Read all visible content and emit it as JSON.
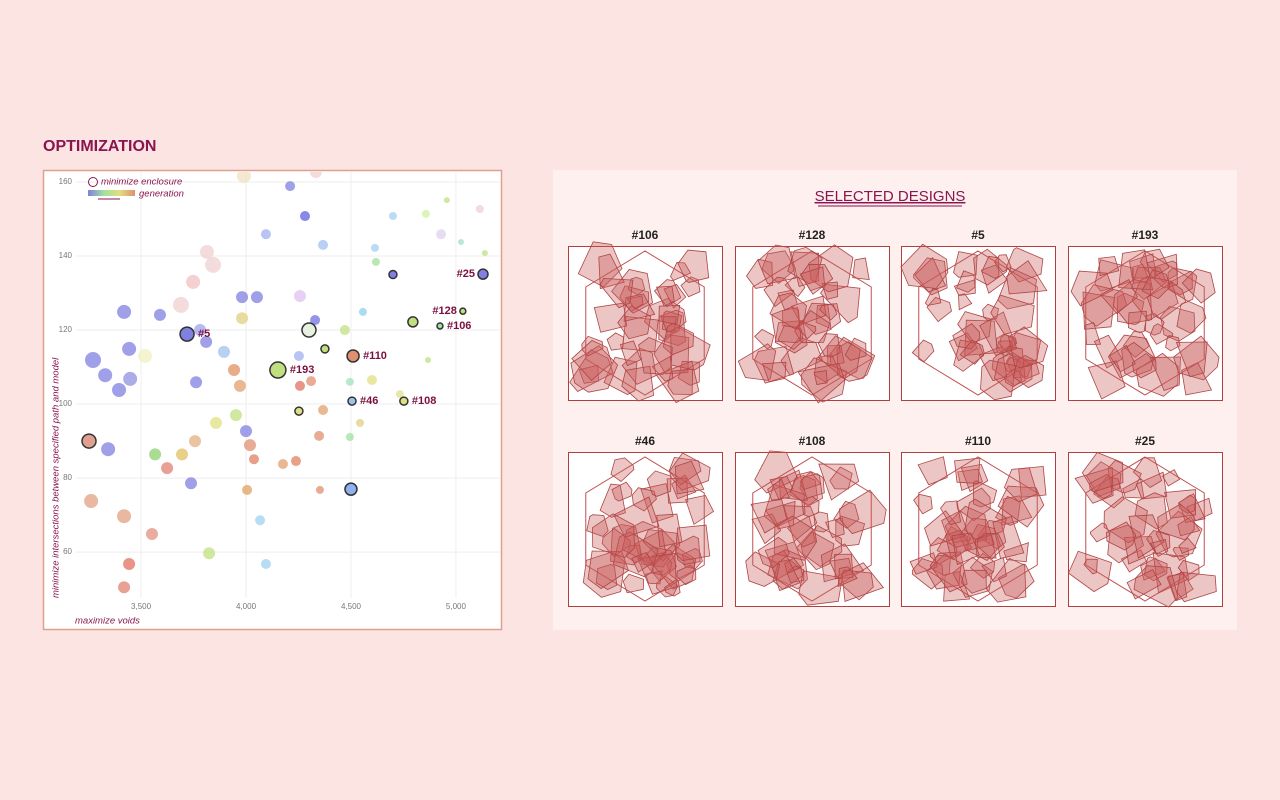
{
  "header": {
    "title": "OPTIMIZATION"
  },
  "chart_data": {
    "type": "scatter",
    "x_label": "maximize voids",
    "y_label": "minimize intersections between specified path and model",
    "legend": {
      "outline": "minimize enclosure",
      "gradient": "generation",
      "gradient_colors": [
        "#8080e0",
        "#a0e0a0",
        "#e0e080",
        "#e09070"
      ]
    },
    "xlim": [
      3190,
      5210
    ],
    "ylim": [
      47.6,
      162.7
    ],
    "xticks": [
      {
        "value": 3500,
        "label": "3,500"
      },
      {
        "value": 4000,
        "label": "4,000"
      },
      {
        "value": 4500,
        "label": "4,500"
      },
      {
        "value": 5000,
        "label": "5,000"
      }
    ],
    "yticks": [
      60,
      80,
      100,
      120,
      140,
      160
    ],
    "grid": true,
    "series": [
      {
        "x": [
          3271,
          3329,
          3395,
          3443,
          3419,
          3448,
          3343,
          3262,
          3419,
          3443,
          3419,
          3552,
          3567,
          3624,
          3590,
          3519,
          3781,
          3810,
          3895,
          3762,
          3981,
          4052,
          3981,
          3943,
          3971,
          3952,
          4000,
          4019,
          4005,
          4067,
          4095,
          3824,
          3757,
          3695,
          3738,
          3857,
          4038,
          4210,
          4281,
          4095,
          4367,
          4329,
          4252,
          4310,
          4257,
          4367,
          4348,
          4352,
          4238,
          4176,
          4471,
          4557,
          4619,
          4614,
          4700,
          4857,
          4957,
          5114,
          5024,
          5138,
          4929,
          4867,
          4600,
          4495,
          4495,
          4543,
          4733,
          3843,
          3690,
          3748,
          3814,
          3990,
          4333,
          4257
        ],
        "values": [
          111.9,
          107.8,
          103.8,
          114.9,
          124.9,
          106.8,
          87.8,
          73.8,
          69.7,
          56.8,
          50.5,
          64.9,
          86.4,
          82.7,
          124.1,
          113,
          120,
          116.8,
          114.1,
          105.9,
          128.9,
          128.9,
          123.2,
          109.2,
          104.9,
          97,
          92.7,
          88.9,
          76.8,
          68.6,
          56.8,
          59.7,
          90,
          86.4,
          78.6,
          94.9,
          85.1,
          158.9,
          150.8,
          145.9,
          143,
          122.7,
          113,
          106.2,
          104.9,
          98.4,
          91.4,
          76.8,
          84.6,
          83.8,
          120,
          124.9,
          138.4,
          142.2,
          150.8,
          151.4,
          155.1,
          152.7,
          143.8,
          140.8,
          145.9,
          111.9,
          106.5,
          106,
          91.1,
          94.9,
          102.7,
          137.6,
          126.8,
          133,
          141.1,
          161.6,
          162.7,
          129.2
        ],
        "sizes": [
          8,
          7,
          7,
          7,
          7,
          7,
          7,
          7,
          7,
          6,
          6,
          6,
          6,
          6,
          6,
          7,
          6,
          6,
          6,
          6,
          6,
          6,
          6,
          6,
          6,
          6,
          6,
          6,
          5,
          5,
          5,
          6,
          6,
          6,
          6,
          6,
          5,
          5,
          5,
          5,
          5,
          5,
          5,
          5,
          5,
          5,
          5,
          4,
          5,
          5,
          5,
          4,
          4,
          4,
          4,
          4,
          3,
          4,
          3,
          3,
          5,
          3,
          5,
          4,
          4,
          4,
          4,
          8,
          8,
          7,
          7,
          7,
          6,
          6
        ],
        "colors": [
          "#8080e0",
          "#8080e0",
          "#8080e0",
          "#8080e0",
          "#8080e0",
          "#9090e0",
          "#8080e0",
          "#e0a080",
          "#e0a080",
          "#e07060",
          "#e08070",
          "#e09080",
          "#90d070",
          "#e08070",
          "#8080e0",
          "#f0f0c0",
          "#a0a0f0",
          "#8080e0",
          "#a0c0f0",
          "#8080e0",
          "#8080e0",
          "#8080e0",
          "#e0d080",
          "#e09060",
          "#e0a070",
          "#c0e080",
          "#8080e0",
          "#e09070",
          "#e0a060",
          "#a0d0f0",
          "#a0d0f0",
          "#c0e080",
          "#e0b080",
          "#e0c060",
          "#8080e0",
          "#e0e080",
          "#e08060",
          "#8080e0",
          "#6060e0",
          "#a0b0f0",
          "#a0c0f0",
          "#7070e0",
          "#a0b0f0",
          "#e09070",
          "#e07060",
          "#e0a070",
          "#e09070",
          "#e09070",
          "#e08060",
          "#e0a070",
          "#c0e080",
          "#90d0f0",
          "#a0e0a0",
          "#a0d0f0",
          "#a0d0f0",
          "#d0f0a0",
          "#c0e080",
          "#f0d0d0",
          "#a0e0c0",
          "#c0e080",
          "#e0d0f0",
          "#c0e080",
          "#e0e080",
          "#a0e0c0",
          "#a0e0a0",
          "#e0d080",
          "#e0e090",
          "#f0d0d0",
          "#f0d0d0",
          "#f0c0c0",
          "#f0d0d0",
          "#f0e0c0",
          "#f0d0d0",
          "#e0c0f0"
        ]
      },
      {
        "outline": "#333333",
        "x": [
          3719,
          5129,
          5033,
          4924,
          4510,
          4152,
          4505,
          4752,
          3252,
          4500,
          4795,
          4300,
          4376,
          4252,
          4700
        ],
        "values": [
          118.9,
          135.1,
          125.1,
          121.1,
          113,
          109.2,
          100.8,
          100.8,
          90,
          77,
          122.2,
          120,
          114.9,
          98.1,
          135
        ],
        "sizes": [
          7,
          5,
          3,
          3,
          6,
          8,
          4,
          4,
          7,
          6,
          5,
          7,
          4,
          4,
          4
        ],
        "colors": [
          "#8080e0",
          "#8080e0",
          "#c0e080",
          "#a0e0a0",
          "#e09070",
          "#c0e080",
          "#a0c0f0",
          "#e0e080",
          "#e0a090",
          "#90b0f0",
          "#c0e080",
          "#e8f0e0",
          "#c0e080",
          "#e0e080",
          "#8080e0"
        ],
        "labels": [
          "#5",
          "#25",
          "#128",
          "#106",
          "#110",
          "#193",
          "#46",
          "#108",
          null,
          null,
          null,
          null,
          null,
          null,
          null
        ]
      }
    ]
  },
  "designs": {
    "title": "SELECTED DESIGNS",
    "items": [
      "#106",
      "#128",
      "#5",
      "#193",
      "#46",
      "#108",
      "#110",
      "#25"
    ]
  }
}
